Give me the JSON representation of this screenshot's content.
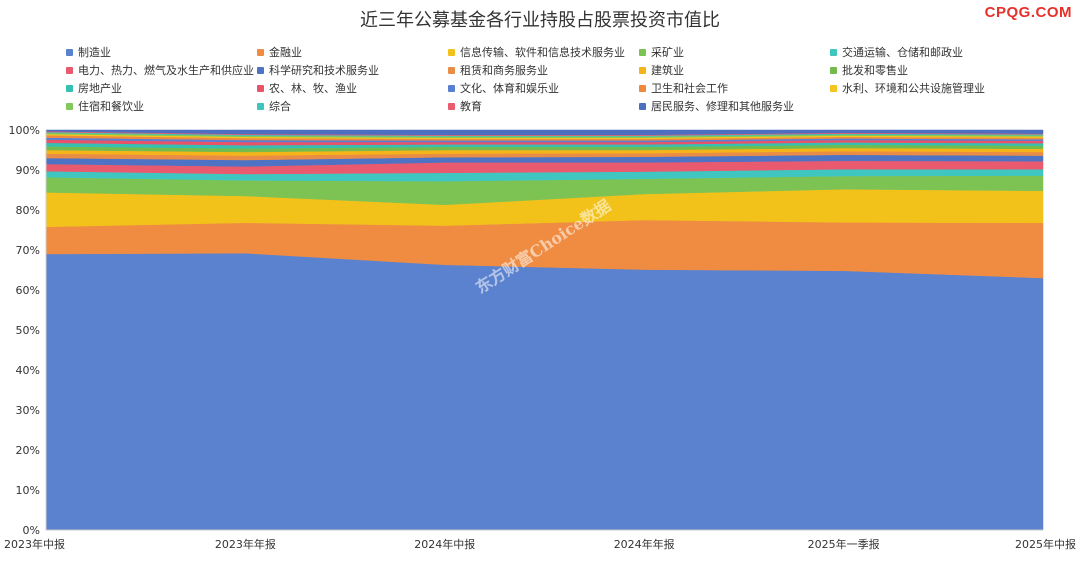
{
  "header": {
    "brand": "CPQG.COM"
  },
  "watermark": "东方财富Choice数据",
  "chart_data": {
    "type": "area",
    "stacked": true,
    "title": "近三年公募基金各行业持股占股票投资市值比",
    "x": [
      "2023年中报",
      "2023年年报",
      "2024年中报",
      "2024年年报",
      "2025年一季报",
      "2025年中报"
    ],
    "ylim": [
      0,
      100
    ],
    "yticks": [
      "0%",
      "10%",
      "20%",
      "30%",
      "40%",
      "50%",
      "60%",
      "70%",
      "80%",
      "90%",
      "100%"
    ],
    "legend_position": "top",
    "series": [
      {
        "name": "制造业",
        "color": "#5b82cf",
        "values": [
          69.0,
          69.2,
          66.3,
          65.1,
          64.8,
          63.0
        ]
      },
      {
        "name": "金融业",
        "color": "#ef8c42",
        "values": [
          6.8,
          7.6,
          9.8,
          12.4,
          12.1,
          13.8
        ]
      },
      {
        "name": "信息传输、软件和信息技术服务业",
        "color": "#f2c21a",
        "values": [
          8.6,
          6.7,
          5.2,
          6.5,
          8.3,
          8.0
        ]
      },
      {
        "name": "采矿业",
        "color": "#7dc354",
        "values": [
          3.8,
          3.9,
          5.9,
          3.8,
          3.3,
          3.8
        ]
      },
      {
        "name": "交通运输、仓储和邮政业",
        "color": "#40c6c0",
        "values": [
          1.5,
          1.6,
          2.1,
          1.8,
          1.7,
          1.6
        ]
      },
      {
        "name": "电力、热力、燃气及水生产和供应业",
        "color": "#e95a6e",
        "values": [
          1.8,
          1.9,
          2.6,
          2.3,
          2.1,
          2.0
        ]
      },
      {
        "name": "科学研究和技术服务业",
        "color": "#4e73c4",
        "values": [
          1.5,
          1.6,
          1.3,
          1.4,
          1.5,
          1.4
        ]
      },
      {
        "name": "租赁和商务服务业",
        "color": "#e98c45",
        "values": [
          1.1,
          1.1,
          0.9,
          0.9,
          0.9,
          0.9
        ]
      },
      {
        "name": "建筑业",
        "color": "#f5b41a",
        "values": [
          0.9,
          0.9,
          0.9,
          0.8,
          0.8,
          0.8
        ]
      },
      {
        "name": "批发和零售业",
        "color": "#74bb4e",
        "values": [
          0.9,
          0.9,
          0.8,
          0.8,
          0.8,
          0.8
        ]
      },
      {
        "name": "房地产业",
        "color": "#35c0b2",
        "values": [
          0.9,
          0.8,
          0.6,
          0.6,
          0.6,
          0.6
        ]
      },
      {
        "name": "农、林、牧、渔业",
        "color": "#e8536a",
        "values": [
          0.8,
          0.8,
          0.6,
          0.6,
          0.6,
          0.6
        ]
      },
      {
        "name": "文化、体育和娱乐业",
        "color": "#5a7fd0",
        "values": [
          0.5,
          0.5,
          0.4,
          0.4,
          0.4,
          0.4
        ]
      },
      {
        "name": "卫生和社会工作",
        "color": "#ee8a3e",
        "values": [
          0.6,
          0.5,
          0.4,
          0.4,
          0.4,
          0.4
        ]
      },
      {
        "name": "水利、环境和公共设施管理业",
        "color": "#f4c51f",
        "values": [
          0.3,
          0.3,
          0.3,
          0.3,
          0.3,
          0.3
        ]
      },
      {
        "name": "住宿和餐饮业",
        "color": "#82c85a",
        "values": [
          0.3,
          0.3,
          0.3,
          0.3,
          0.3,
          0.3
        ]
      },
      {
        "name": "综合",
        "color": "#3dc4bc",
        "values": [
          0.2,
          0.2,
          0.2,
          0.2,
          0.2,
          0.2
        ]
      },
      {
        "name": "教育",
        "color": "#ea5b70",
        "values": [
          0.2,
          0.2,
          0.2,
          0.2,
          0.2,
          0.2
        ]
      },
      {
        "name": "居民服务、修理和其他服务业",
        "color": "#4d6fc0",
        "values": [
          0.3,
          1.0,
          1.2,
          1.2,
          0.7,
          0.9
        ]
      }
    ]
  }
}
